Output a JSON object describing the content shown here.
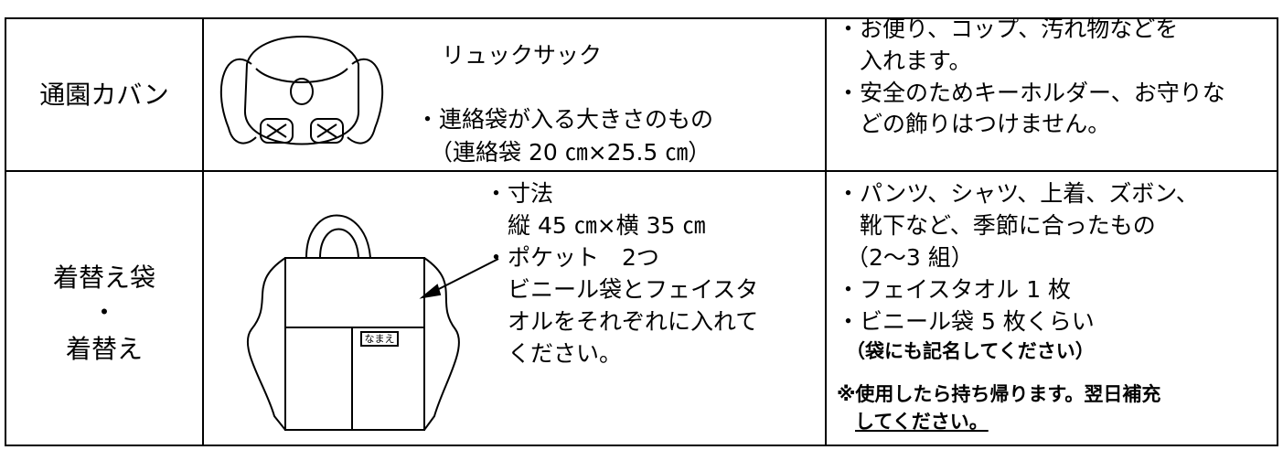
{
  "table": {
    "rows": [
      {
        "label": [
          "通園カバン"
        ],
        "middle": [
          "リュックサック",
          "・連絡袋が入る大きさのもの",
          "（連絡袋 20 ㎝×25.5 ㎝）"
        ],
        "right": [
          "・お便り、コップ、汚れ物などを",
          "入れます。",
          "・安全のためキーホルダー、お守りな",
          "どの飾りはつけません。"
        ]
      },
      {
        "label": [
          "着替え袋",
          "・",
          "着替え"
        ],
        "middle": [
          "・寸法",
          "縦 45 ㎝×横 35 ㎝",
          "・ポケット　2つ",
          "ビニール袋とフェイスタ",
          "オルをそれぞれに入れて",
          "ください。"
        ],
        "bag_label": "なまえ",
        "right": [
          "・パンツ、シャツ、上着、ズボン、",
          "靴下など、季節に合ったもの",
          "（2〜3 組）",
          "・フェイスタオル 1 枚",
          "・ビニール袋 5 枚くらい",
          "（袋にも記名してください）",
          "※使用したら持ち帰ります。翌日補充",
          "してください。"
        ]
      }
    ]
  }
}
